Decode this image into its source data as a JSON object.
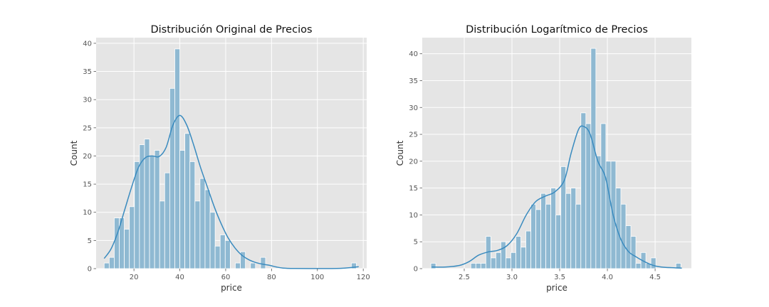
{
  "figure": {
    "background": "#ffffff",
    "axes_background": "#e5e5e5",
    "grid_color": "#ffffff",
    "bar_fill": "#8fb9d2",
    "bar_edge": "#ffffff",
    "kde_color": "#3a8bbf",
    "text_color": "#333333",
    "tick_color": "#555555"
  },
  "chart_data": [
    {
      "type": "histogram",
      "title": "Distribución Original de Precios",
      "xlabel": "price",
      "ylabel": "Count",
      "xlim": [
        3.5,
        121.5
      ],
      "ylim": [
        0,
        41
      ],
      "xticks": [
        20,
        40,
        60,
        80,
        100,
        120
      ],
      "xtick_labels": [
        "20",
        "40",
        "60",
        "80",
        "100",
        "120"
      ],
      "yticks": [
        0,
        5,
        10,
        15,
        20,
        25,
        30,
        35,
        40
      ],
      "ytick_labels": [
        "0",
        "5",
        "10",
        "15",
        "20",
        "25",
        "30",
        "35",
        "40"
      ],
      "grid": true,
      "bin_start": 7.0,
      "bin_width": 2.2,
      "counts": [
        1,
        2,
        9,
        9,
        7,
        11,
        19,
        22,
        23,
        20,
        21,
        12,
        17,
        32,
        39,
        21,
        24,
        19,
        12,
        16,
        14,
        10,
        4,
        6,
        5,
        0,
        1,
        3,
        0,
        1,
        0,
        2,
        0,
        0,
        0,
        0,
        0,
        0,
        0,
        0,
        0,
        0,
        0,
        0,
        0,
        0,
        0,
        0,
        0,
        1
      ],
      "kde": {
        "x": [
          7,
          10,
          13,
          16,
          19,
          22,
          25,
          28,
          31,
          34,
          37,
          40,
          43,
          46,
          49,
          52,
          55,
          58,
          61,
          64,
          67,
          70,
          73,
          76,
          79,
          82,
          85,
          90,
          100,
          110,
          115,
          118
        ],
        "y": [
          1.8,
          3.5,
          6.5,
          10.5,
          14.5,
          18,
          19.7,
          20,
          19.9,
          21.5,
          25.5,
          27.2,
          25.5,
          22,
          18,
          14.5,
          11,
          8,
          5.5,
          3.7,
          2.4,
          1.6,
          1.1,
          0.8,
          0.6,
          0.3,
          0.1,
          0.03,
          0.01,
          0.05,
          0.2,
          0.35
        ]
      }
    },
    {
      "type": "histogram",
      "title": "Distribución Logarítmico de Precios",
      "xlabel": "price",
      "ylabel": "Count",
      "xlim": [
        2.06,
        4.88
      ],
      "ylim": [
        0,
        43
      ],
      "xticks": [
        2.5,
        3.0,
        3.5,
        4.0,
        4.5
      ],
      "xtick_labels": [
        "2.5",
        "3.0",
        "3.5",
        "4.0",
        "4.5"
      ],
      "yticks": [
        0,
        5,
        10,
        15,
        20,
        25,
        30,
        35,
        40
      ],
      "ytick_labels": [
        "0",
        "5",
        "10",
        "15",
        "20",
        "25",
        "30",
        "35",
        "40"
      ],
      "grid": true,
      "bin_start": 2.15,
      "bin_width": 0.0524,
      "counts": [
        1,
        0,
        0,
        0,
        0,
        0,
        0,
        0,
        1,
        1,
        1,
        6,
        2,
        3,
        5,
        2,
        3,
        6,
        4,
        7,
        12,
        11,
        14,
        12,
        15,
        10,
        19,
        14,
        15,
        12,
        29,
        27,
        41,
        21,
        27,
        20,
        20,
        15,
        12,
        8,
        6,
        1,
        3,
        1,
        2,
        0,
        0,
        0,
        0,
        1
      ],
      "kde": {
        "x": [
          2.16,
          2.3,
          2.45,
          2.55,
          2.65,
          2.75,
          2.85,
          2.95,
          3.05,
          3.15,
          3.25,
          3.35,
          3.45,
          3.55,
          3.62,
          3.7,
          3.76,
          3.82,
          3.9,
          3.98,
          4.06,
          4.14,
          4.22,
          4.3,
          4.4,
          4.5,
          4.6,
          4.78
        ],
        "y": [
          0.3,
          0.3,
          0.6,
          1.3,
          2.5,
          3.1,
          3.4,
          4.3,
          6.5,
          10,
          12.5,
          13.5,
          14.3,
          16.5,
          21.5,
          26,
          26.4,
          25,
          20,
          17,
          10,
          5.5,
          3.2,
          2.2,
          1.2,
          0.5,
          0.25,
          0.1
        ]
      }
    }
  ]
}
